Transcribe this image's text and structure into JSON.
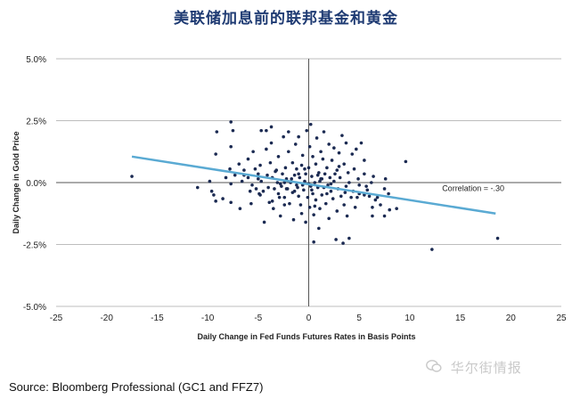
{
  "title": "美联储加息前的联邦基金和黄金",
  "source": "Source: Bloomberg Professional (GC1 and FFZ7)",
  "watermark": "华尔街情报",
  "chart_data": {
    "type": "scatter",
    "xlabel": "Daily Change in Fed Funds Futures Rates in Basis Points",
    "ylabel": "Daily Change in Gold Price",
    "xlim": [
      -25,
      25
    ],
    "ylim": [
      -5,
      5
    ],
    "x_ticks": [
      -25,
      -20,
      -15,
      -10,
      -5,
      0,
      5,
      10,
      15,
      20,
      25
    ],
    "y_ticks": [
      5,
      2.5,
      0,
      -2.5,
      -5
    ],
    "x_tick_labels": [
      "-25",
      "-20",
      "-15",
      "-10",
      "-5",
      "0",
      "5",
      "10",
      "15",
      "20",
      "25"
    ],
    "y_tick_labels": [
      "5.0%",
      "2.5%",
      "0.0%",
      "-2.5%",
      "-5.0%"
    ],
    "grid": "horizontal",
    "point_color": "#1b2a52",
    "trendline_color": "#5aaad3",
    "trendline": {
      "x": [
        -17.5,
        18.5
      ],
      "y": [
        1.05,
        -1.25
      ]
    },
    "annotation": {
      "text": "Correlation = -.30",
      "x": 13.2,
      "y": -0.35
    },
    "points": [
      [
        -17.5,
        0.25
      ],
      [
        18.7,
        -2.25
      ],
      [
        12.2,
        -2.7
      ],
      [
        9.6,
        0.85
      ],
      [
        8.7,
        -1.05
      ],
      [
        7.5,
        -1.35
      ],
      [
        6.8,
        -0.6
      ],
      [
        6.3,
        -1.0
      ],
      [
        6.3,
        -1.35
      ],
      [
        5.5,
        0.35
      ],
      [
        -11.0,
        -0.2
      ],
      [
        -9.8,
        0.05
      ],
      [
        -9.6,
        -0.35
      ],
      [
        -9.4,
        -0.5
      ],
      [
        -9.2,
        1.15
      ],
      [
        -9.2,
        -0.75
      ],
      [
        -9.1,
        2.05
      ],
      [
        -8.5,
        -0.65
      ],
      [
        -8.2,
        0.2
      ],
      [
        -7.7,
        -0.8
      ],
      [
        -7.7,
        -0.05
      ],
      [
        -7.8,
        0.55
      ],
      [
        -7.7,
        1.45
      ],
      [
        -7.7,
        2.45
      ],
      [
        -7.5,
        2.1
      ],
      [
        -6.9,
        0.75
      ],
      [
        -7.3,
        0.3
      ],
      [
        -6.8,
        -1.05
      ],
      [
        -6.4,
        0.3
      ],
      [
        -6.4,
        0.5
      ],
      [
        -6.0,
        0.2
      ],
      [
        -6.0,
        0.95
      ],
      [
        -5.8,
        -0.35
      ],
      [
        -5.7,
        -0.85
      ],
      [
        -5.6,
        -0.1
      ],
      [
        -5.5,
        1.25
      ],
      [
        -5.2,
        -0.25
      ],
      [
        -5.0,
        0.15
      ],
      [
        -5.0,
        0.35
      ],
      [
        -4.8,
        -0.5
      ],
      [
        -4.8,
        0.7
      ],
      [
        -4.7,
        2.1
      ],
      [
        -4.5,
        -0.35
      ],
      [
        -4.4,
        -1.6
      ],
      [
        -4.2,
        1.35
      ],
      [
        -4.2,
        2.1
      ],
      [
        -4.1,
        0.3
      ],
      [
        -4.0,
        -0.2
      ],
      [
        -3.8,
        0.8
      ],
      [
        -3.7,
        1.6
      ],
      [
        -3.7,
        2.25
      ],
      [
        -3.6,
        -0.75
      ],
      [
        -3.5,
        -1.05
      ],
      [
        -3.4,
        -0.25
      ],
      [
        -3.2,
        0.5
      ],
      [
        -3.1,
        0.0
      ],
      [
        -3.0,
        -0.45
      ],
      [
        -3.0,
        1.05
      ],
      [
        -2.8,
        -1.35
      ],
      [
        -2.8,
        -0.05
      ],
      [
        -2.6,
        0.35
      ],
      [
        -2.5,
        1.85
      ],
      [
        -2.4,
        -0.6
      ],
      [
        -2.4,
        -0.9
      ],
      [
        -2.3,
        0.6
      ],
      [
        -2.2,
        0.15
      ],
      [
        -2.1,
        -0.25
      ],
      [
        -2.0,
        1.25
      ],
      [
        -2.0,
        2.05
      ],
      [
        -1.9,
        -0.85
      ],
      [
        -1.8,
        0.0
      ],
      [
        -1.6,
        0.8
      ],
      [
        -1.6,
        -0.4
      ],
      [
        -1.5,
        -1.5
      ],
      [
        -1.4,
        0.3
      ],
      [
        -1.3,
        1.55
      ],
      [
        -1.2,
        -0.1
      ],
      [
        -1.2,
        0.55
      ],
      [
        -1.0,
        -0.55
      ],
      [
        -1.0,
        1.85
      ],
      [
        -0.9,
        0.2
      ],
      [
        -0.8,
        -0.9
      ],
      [
        -0.7,
        -1.25
      ],
      [
        -0.7,
        0.7
      ],
      [
        -0.6,
        1.1
      ],
      [
        -0.5,
        -0.3
      ],
      [
        -0.4,
        0.05
      ],
      [
        -0.3,
        -1.6
      ],
      [
        -0.3,
        0.35
      ],
      [
        -0.2,
        2.1
      ],
      [
        -0.1,
        -0.6
      ],
      [
        0.0,
        0.6
      ],
      [
        0.1,
        -1.0
      ],
      [
        0.1,
        1.45
      ],
      [
        0.2,
        -0.15
      ],
      [
        0.2,
        2.35
      ],
      [
        0.3,
        0.25
      ],
      [
        0.4,
        -0.45
      ],
      [
        0.4,
        1.05
      ],
      [
        0.5,
        -2.4
      ],
      [
        0.5,
        -1.3
      ],
      [
        0.6,
        0.0
      ],
      [
        0.7,
        0.75
      ],
      [
        0.7,
        -0.7
      ],
      [
        0.8,
        1.8
      ],
      [
        0.9,
        -0.2
      ],
      [
        1.0,
        0.4
      ],
      [
        1.0,
        -1.85
      ],
      [
        1.1,
        -1.05
      ],
      [
        1.2,
        1.25
      ],
      [
        1.2,
        0.15
      ],
      [
        1.3,
        -0.5
      ],
      [
        1.4,
        0.95
      ],
      [
        1.5,
        -0.2
      ],
      [
        1.5,
        2.05
      ],
      [
        1.6,
        0.35
      ],
      [
        1.7,
        -0.85
      ],
      [
        1.8,
        0.6
      ],
      [
        1.9,
        -0.1
      ],
      [
        2.0,
        1.55
      ],
      [
        2.0,
        -1.45
      ],
      [
        2.1,
        0.2
      ],
      [
        2.2,
        -0.35
      ],
      [
        2.3,
        0.9
      ],
      [
        2.4,
        -0.65
      ],
      [
        2.5,
        1.4
      ],
      [
        2.5,
        0.05
      ],
      [
        2.7,
        -2.3
      ],
      [
        2.8,
        0.5
      ],
      [
        2.8,
        -1.15
      ],
      [
        2.9,
        -0.25
      ],
      [
        3.0,
        1.2
      ],
      [
        3.1,
        0.2
      ],
      [
        3.2,
        -0.55
      ],
      [
        3.3,
        1.9
      ],
      [
        3.4,
        -2.45
      ],
      [
        3.5,
        -0.9
      ],
      [
        3.5,
        0.75
      ],
      [
        3.7,
        -0.15
      ],
      [
        3.7,
        1.6
      ],
      [
        3.8,
        -1.35
      ],
      [
        3.9,
        0.4
      ],
      [
        4.0,
        -2.25
      ],
      [
        4.0,
        0.0
      ],
      [
        4.2,
        -0.6
      ],
      [
        4.3,
        1.15
      ],
      [
        4.4,
        -0.35
      ],
      [
        4.5,
        0.55
      ],
      [
        4.6,
        -1.0
      ],
      [
        4.7,
        1.35
      ],
      [
        4.9,
        0.15
      ],
      [
        5.0,
        -0.45
      ],
      [
        5.0,
        -0.1
      ],
      [
        5.2,
        1.6
      ],
      [
        5.5,
        0.9
      ],
      [
        5.5,
        -0.5
      ],
      [
        5.7,
        -0.15
      ],
      [
        5.8,
        -0.3
      ],
      [
        6.0,
        -0.55
      ],
      [
        6.2,
        0.0
      ],
      [
        6.4,
        0.25
      ],
      [
        6.6,
        -0.7
      ],
      [
        7.1,
        -0.9
      ],
      [
        7.5,
        -0.25
      ],
      [
        7.6,
        0.15
      ],
      [
        7.9,
        -0.45
      ],
      [
        8.0,
        -1.1
      ],
      [
        -3.9,
        -0.8
      ],
      [
        -2.2,
        -0.25
      ],
      [
        -1.0,
        0.35
      ],
      [
        0.6,
        -0.95
      ],
      [
        1.8,
        -0.45
      ],
      [
        3.0,
        0.65
      ],
      [
        -3.3,
        0.45
      ],
      [
        -4.7,
        0.05
      ],
      [
        -2.7,
        -0.15
      ],
      [
        -1.7,
        0.15
      ],
      [
        -0.6,
        -0.1
      ],
      [
        0.9,
        0.3
      ],
      [
        2.2,
        -0.05
      ],
      [
        -6.6,
        0.05
      ],
      [
        -5.3,
        0.55
      ],
      [
        -4.9,
        -0.45
      ],
      [
        -3.6,
        0.2
      ],
      [
        -2.9,
        -0.6
      ],
      [
        -1.4,
        -0.35
      ],
      [
        -0.4,
        0.55
      ],
      [
        0.3,
        -0.3
      ],
      [
        1.3,
        0.15
      ],
      [
        2.6,
        0.35
      ],
      [
        3.6,
        -0.4
      ],
      [
        4.8,
        -0.6
      ],
      [
        -2.4,
        0.0
      ],
      [
        -1.1,
        -0.2
      ],
      [
        0.0,
        -0.05
      ],
      [
        1.1,
        0.05
      ]
    ]
  }
}
